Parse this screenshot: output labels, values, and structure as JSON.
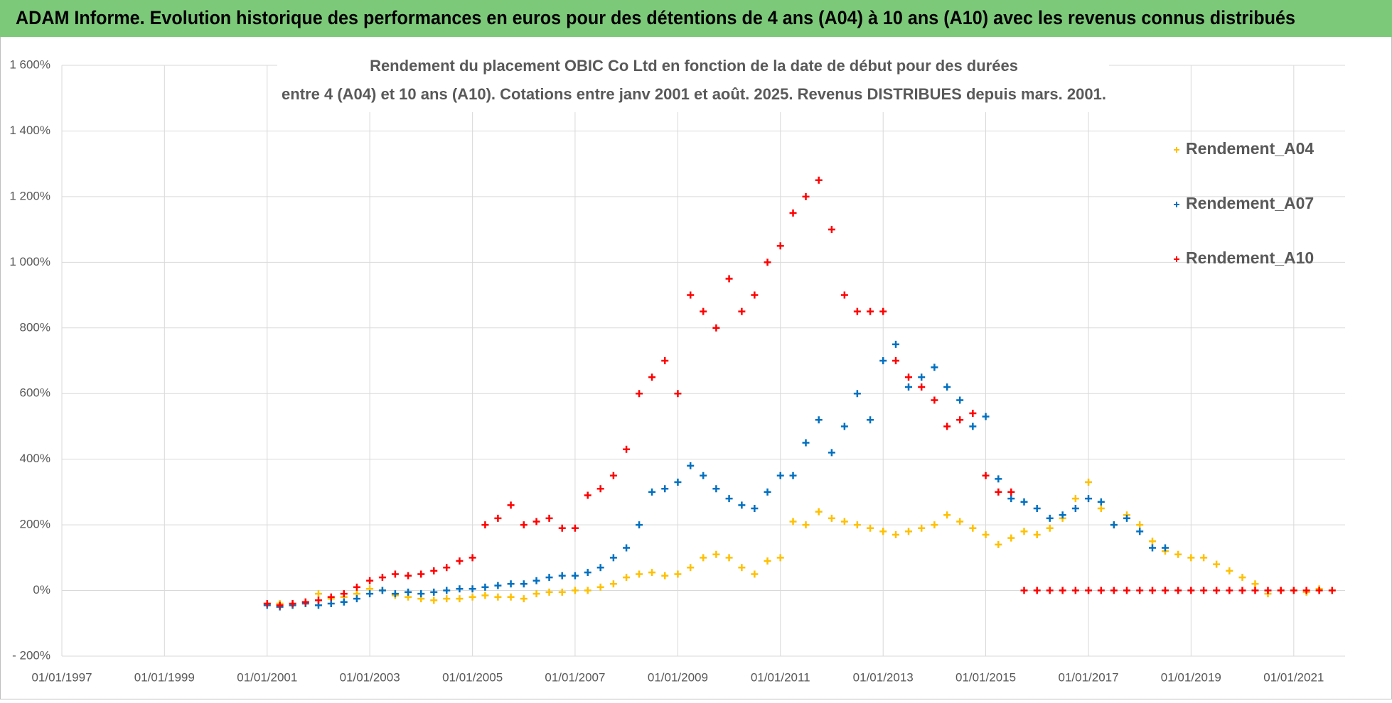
{
  "header": {
    "title": "ADAM Informe. Evolution historique des performances en euros pour des détentions de 4 ans (A04) à 10 ans (A10) avec les revenus connus distribués"
  },
  "chart_data": {
    "type": "scatter",
    "title": [
      "Rendement du placement OBIC Co Ltd en fonction de la date de début pour des durées",
      "entre 4 (A04) et 10 ans (A10). Cotations entre janv 2001 et août. 2025. Revenus DISTRIBUES depuis mars. 2001."
    ],
    "x": [
      "2001-01-01",
      "2001-04-01",
      "2001-07-01",
      "2001-10-01",
      "2002-01-01",
      "2002-04-01",
      "2002-07-01",
      "2002-10-01",
      "2003-01-01",
      "2003-04-01",
      "2003-07-01",
      "2003-10-01",
      "2004-01-01",
      "2004-04-01",
      "2004-07-01",
      "2004-10-01",
      "2005-01-01",
      "2005-04-01",
      "2005-07-01",
      "2005-10-01",
      "2006-01-01",
      "2006-04-01",
      "2006-07-01",
      "2006-10-01",
      "2007-01-01",
      "2007-04-01",
      "2007-07-01",
      "2007-10-01",
      "2008-01-01",
      "2008-04-01",
      "2008-07-01",
      "2008-10-01",
      "2009-01-01",
      "2009-04-01",
      "2009-07-01",
      "2009-10-01",
      "2010-01-01",
      "2010-04-01",
      "2010-07-01",
      "2010-10-01",
      "2011-01-01",
      "2011-04-01",
      "2011-07-01",
      "2011-10-01",
      "2012-01-01",
      "2012-04-01",
      "2012-07-01",
      "2012-10-01",
      "2013-01-01",
      "2013-04-01",
      "2013-07-01",
      "2013-10-01",
      "2014-01-01",
      "2014-04-01",
      "2014-07-01",
      "2014-10-01",
      "2015-01-01",
      "2015-04-01",
      "2015-07-01",
      "2015-10-01",
      "2016-01-01",
      "2016-04-01",
      "2016-07-01",
      "2016-10-01",
      "2017-01-01",
      "2017-04-01",
      "2017-07-01",
      "2017-10-01",
      "2018-01-01",
      "2018-04-01",
      "2018-07-01",
      "2018-10-01",
      "2019-01-01",
      "2019-04-01",
      "2019-07-01",
      "2019-10-01",
      "2020-01-01",
      "2020-04-01",
      "2020-07-01",
      "2020-10-01",
      "2021-01-01",
      "2021-04-01",
      "2021-07-01",
      "2021-10-01"
    ],
    "series": [
      {
        "name": "Rendement_A04",
        "color": "#ffc000",
        "values": [
          -40,
          -40,
          -45,
          -35,
          -10,
          -25,
          -20,
          -10,
          5,
          0,
          -15,
          -20,
          -25,
          -30,
          -25,
          -25,
          -20,
          -15,
          -20,
          -20,
          -25,
          -10,
          -5,
          -5,
          0,
          0,
          10,
          20,
          40,
          50,
          55,
          45,
          50,
          70,
          100,
          110,
          100,
          70,
          50,
          90,
          100,
          210,
          200,
          240,
          220,
          210,
          200,
          190,
          180,
          170,
          180,
          190,
          200,
          230,
          210,
          190,
          170,
          140,
          160,
          180,
          170,
          190,
          220,
          280,
          330,
          250,
          200,
          230,
          200,
          150,
          120,
          110,
          100,
          100,
          80,
          60,
          40,
          20,
          -10,
          0,
          0,
          -5,
          5,
          0
        ]
      },
      {
        "name": "Rendement_A07",
        "color": "#0070c0",
        "values": [
          -45,
          -50,
          -45,
          -40,
          -45,
          -40,
          -35,
          -25,
          -10,
          0,
          -10,
          -5,
          -10,
          -5,
          0,
          5,
          5,
          10,
          15,
          20,
          20,
          30,
          40,
          45,
          45,
          55,
          70,
          100,
          130,
          200,
          300,
          310,
          330,
          380,
          350,
          310,
          280,
          260,
          250,
          300,
          350,
          350,
          450,
          520,
          420,
          500,
          600,
          520,
          700,
          750,
          620,
          650,
          680,
          620,
          580,
          500,
          530,
          340,
          280,
          270,
          250,
          220,
          230,
          250,
          280,
          270,
          200,
          220,
          180,
          130,
          130,
          null,
          null,
          null,
          null,
          null,
          null,
          null,
          null,
          null,
          null,
          null,
          null,
          null
        ]
      },
      {
        "name": "Rendement_A10",
        "color": "#ff0000",
        "values": [
          -40,
          -45,
          -40,
          -35,
          -30,
          -20,
          -10,
          10,
          30,
          40,
          50,
          45,
          50,
          60,
          70,
          90,
          100,
          200,
          220,
          260,
          200,
          210,
          220,
          190,
          190,
          290,
          310,
          350,
          430,
          600,
          650,
          700,
          600,
          900,
          850,
          800,
          950,
          850,
          900,
          1000,
          1050,
          1150,
          1200,
          1250,
          1100,
          900,
          850,
          850,
          850,
          700,
          650,
          620,
          580,
          500,
          520,
          540,
          350,
          300,
          300,
          0,
          0,
          0,
          0,
          0,
          0,
          0,
          0,
          0,
          0,
          0,
          0,
          0,
          0,
          0,
          0,
          0,
          0,
          0,
          0,
          0,
          0,
          0,
          0,
          0
        ]
      }
    ],
    "xlim": [
      "1997-01-01",
      "2022-01-01"
    ],
    "xticks": [
      {
        "value": "1997-01-01",
        "label": "01/01/1997"
      },
      {
        "value": "1999-01-01",
        "label": "01/01/1999"
      },
      {
        "value": "2001-01-01",
        "label": "01/01/2001"
      },
      {
        "value": "2003-01-01",
        "label": "01/01/2003"
      },
      {
        "value": "2005-01-01",
        "label": "01/01/2005"
      },
      {
        "value": "2007-01-01",
        "label": "01/01/2007"
      },
      {
        "value": "2009-01-01",
        "label": "01/01/2009"
      },
      {
        "value": "2011-01-01",
        "label": "01/01/2011"
      },
      {
        "value": "2013-01-01",
        "label": "01/01/2013"
      },
      {
        "value": "2015-01-01",
        "label": "01/01/2015"
      },
      {
        "value": "2017-01-01",
        "label": "01/01/2017"
      },
      {
        "value": "2019-01-01",
        "label": "01/01/2019"
      },
      {
        "value": "2021-01-01",
        "label": "01/01/2021"
      }
    ],
    "ylim": [
      -200,
      1600
    ],
    "yticks": [
      {
        "value": -200,
        "label": "- 200%"
      },
      {
        "value": 0,
        "label": "0%"
      },
      {
        "value": 200,
        "label": "200%"
      },
      {
        "value": 400,
        "label": "400%"
      },
      {
        "value": 600,
        "label": "600%"
      },
      {
        "value": 800,
        "label": "800%"
      },
      {
        "value": 1000,
        "label": "1 000%"
      },
      {
        "value": 1200,
        "label": "1 200%"
      },
      {
        "value": 1400,
        "label": "1 400%"
      },
      {
        "value": 1600,
        "label": "1 600%"
      }
    ],
    "grid": true,
    "legend": "top-right"
  }
}
